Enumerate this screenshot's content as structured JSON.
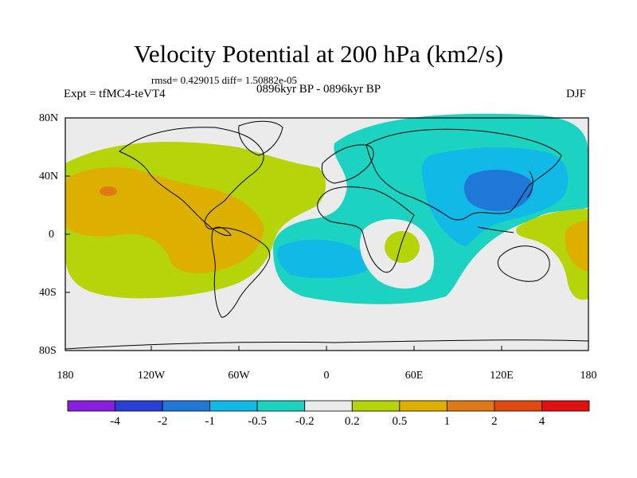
{
  "title": "Velocity Potential at 200 hPa (km2/s)",
  "stats": "rmsd= 0.429015 diff= 1.50882e-05",
  "experiment": "Expt = tfMC4-teVT4",
  "period": "0896kyr BP - 0896kyr BP",
  "season": "DJF",
  "y_axis_labels": [
    "80N",
    "40N",
    "0",
    "40S",
    "80S"
  ],
  "x_axis_labels": [
    "180",
    "120W",
    "60W",
    "0",
    "60E",
    "120E",
    "180"
  ],
  "colorbar": {
    "labels": [
      "-4",
      "-2",
      "-1",
      "-0.5",
      "-0.2",
      "0.2",
      "0.5",
      "1",
      "2",
      "4"
    ],
    "colors": [
      "#8a1ee0",
      "#2a3fd8",
      "#1f78d8",
      "#10b9e6",
      "#1cd3c2",
      "#ebebeb",
      "#b5d40a",
      "#ddb000",
      "#e07a18",
      "#e04810",
      "#e01010"
    ]
  },
  "palette": {
    "ocean": "#ebebeb",
    "green": "#b5d40a",
    "orange": "#ddb000",
    "dark_orange": "#e07a18",
    "teal": "#1cd3c2",
    "blue": "#10b9e6",
    "dark_blue": "#1f78d8"
  }
}
